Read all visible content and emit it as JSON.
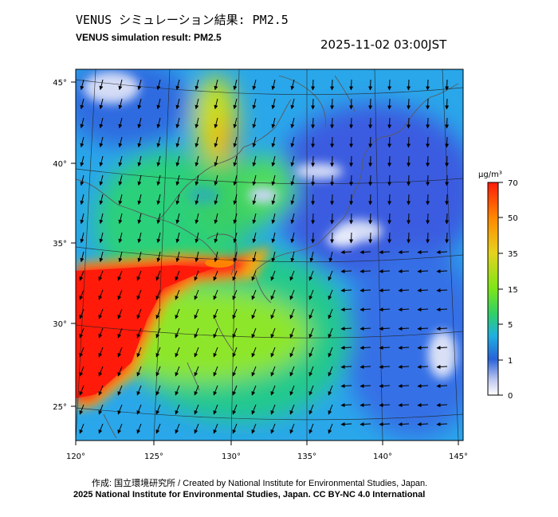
{
  "header": {
    "title_jp": "VENUS シミュレーション結果: PM2.5",
    "title_en": "VENUS simulation result: PM2.5",
    "timestamp": "2025-11-02 03:00JST"
  },
  "map": {
    "lon_ticks": [
      "120°",
      "125°",
      "130°",
      "135°",
      "140°",
      "145°"
    ],
    "lat_ticks": [
      "45°",
      "40°",
      "35°",
      "30°",
      "25°"
    ],
    "field": "PM2.5 concentration with wind vectors"
  },
  "colorbar": {
    "unit": "μg/m³",
    "tick_labels": [
      "70",
      "50",
      "35",
      "15",
      "5",
      "1",
      "0"
    ],
    "colors": [
      "#ff1a0a",
      "#ff8a00",
      "#e6d21e",
      "#7ce619",
      "#2fcf6a",
      "#1fb0e0",
      "#2862d8",
      "#c0c8f0",
      "#ffffff"
    ]
  },
  "credits": {
    "line1": "作成: 国立環境研究所 / Created by National Institute for Environmental Studies, Japan.",
    "line2": "2025 National Institute for Environmental Studies, Japan. CC BY-NC 4.0 International"
  }
}
